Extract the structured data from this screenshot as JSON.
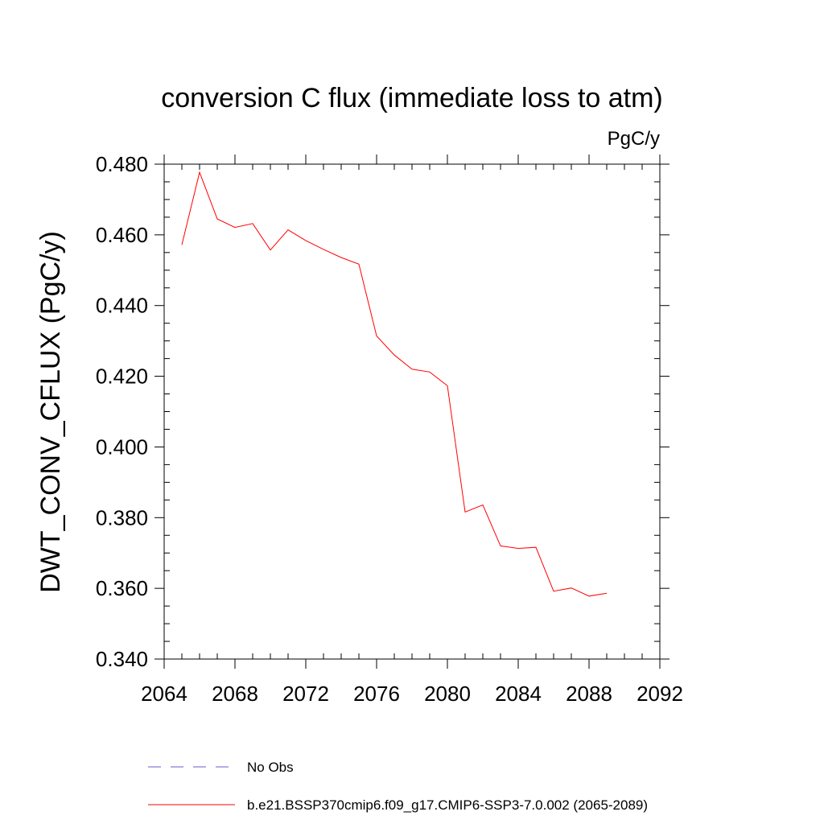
{
  "chart_data": {
    "type": "line",
    "title": "conversion C flux (immediate loss to atm)",
    "units_label": "PgC/y",
    "ylabel": "DWT_CONV_CFLUX  (PgC/y)",
    "xlabel": "",
    "xlim": [
      2064,
      2092
    ],
    "ylim": [
      0.34,
      0.48
    ],
    "x_ticks": [
      2064,
      2068,
      2072,
      2076,
      2080,
      2084,
      2088,
      2092
    ],
    "x_tick_labels": [
      "2064",
      "2068",
      "2072",
      "2076",
      "2080",
      "2084",
      "2088",
      "2092"
    ],
    "y_ticks": [
      0.34,
      0.36,
      0.38,
      0.4,
      0.42,
      0.44,
      0.46,
      0.48
    ],
    "y_tick_labels": [
      "0.340",
      "0.360",
      "0.380",
      "0.400",
      "0.420",
      "0.440",
      "0.460",
      "0.480"
    ],
    "grid": false,
    "legend_position": "bottom",
    "series": [
      {
        "name": "b.e21.BSSP370cmip6.f09_g17.CMIP6-SSP3-7.0.002 (2065-2089)",
        "color": "#ff0000",
        "style": "solid",
        "x": [
          2065,
          2066,
          2067,
          2068,
          2069,
          2070,
          2071,
          2072,
          2073,
          2074,
          2075,
          2076,
          2077,
          2078,
          2079,
          2080,
          2081,
          2082,
          2083,
          2084,
          2085,
          2086,
          2087,
          2088,
          2089
        ],
        "values": [
          0.4572,
          0.4777,
          0.4645,
          0.4621,
          0.4632,
          0.4557,
          0.4614,
          0.4584,
          0.4559,
          0.4536,
          0.4517,
          0.4314,
          0.426,
          0.422,
          0.4212,
          0.4173,
          0.3816,
          0.3836,
          0.372,
          0.3713,
          0.3716,
          0.3592,
          0.3601,
          0.3578,
          0.3586
        ]
      }
    ],
    "legend": [
      {
        "label": "No Obs",
        "color": "#6a5acd",
        "style": "dashed"
      },
      {
        "label": "b.e21.BSSP370cmip6.f09_g17.CMIP6-SSP3-7.0.002 (2065-2089)",
        "color": "#ff0000",
        "style": "solid"
      }
    ]
  }
}
